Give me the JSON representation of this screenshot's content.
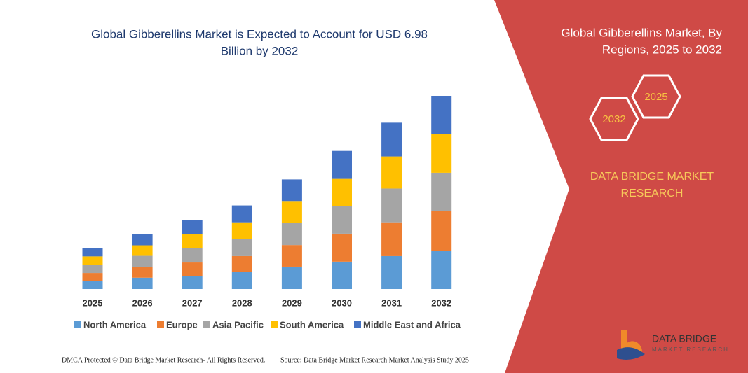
{
  "header": {
    "title_line1": "Global Gibberellins Market is Expected to Account for USD 6.98",
    "title_line2": "Billion by 2032"
  },
  "side_panel": {
    "title_line1": "Global Gibberellins Market, By",
    "title_line2": "Regions, 2025 to 2032",
    "hex_right": "2025",
    "hex_left": "2032",
    "brand_line1": "DATA BRIDGE MARKET",
    "brand_line2": "RESEARCH",
    "logo_name": "DATA BRIDGE",
    "logo_tagline": "MARKET RESEARCH"
  },
  "footer": {
    "left": "DMCA Protected © Data Bridge Market Research- All Rights Reserved.",
    "right": "Source: Data Bridge Market Research  Market Analysis Study 2025"
  },
  "chart_data": {
    "type": "bar",
    "stacked": true,
    "categories": [
      "2025",
      "2026",
      "2027",
      "2028",
      "2029",
      "2030",
      "2031",
      "2032"
    ],
    "series": [
      {
        "name": "North America",
        "color": "#5b9bd5",
        "values": [
          0.28,
          0.41,
          0.48,
          0.61,
          0.81,
          0.99,
          1.19,
          1.39
        ]
      },
      {
        "name": "Europe",
        "color": "#ed7d31",
        "values": [
          0.3,
          0.38,
          0.48,
          0.58,
          0.78,
          1.01,
          1.22,
          1.42
        ]
      },
      {
        "name": "Asia Pacific",
        "color": "#a5a5a5",
        "values": [
          0.3,
          0.41,
          0.51,
          0.61,
          0.81,
          0.99,
          1.22,
          1.39
        ]
      },
      {
        "name": "South America",
        "color": "#ffc000",
        "values": [
          0.3,
          0.38,
          0.51,
          0.61,
          0.78,
          0.99,
          1.16,
          1.39
        ]
      },
      {
        "name": "Middle East and Africa",
        "color": "#4472c4",
        "values": [
          0.3,
          0.41,
          0.51,
          0.61,
          0.78,
          1.01,
          1.22,
          1.39
        ]
      }
    ]
  }
}
